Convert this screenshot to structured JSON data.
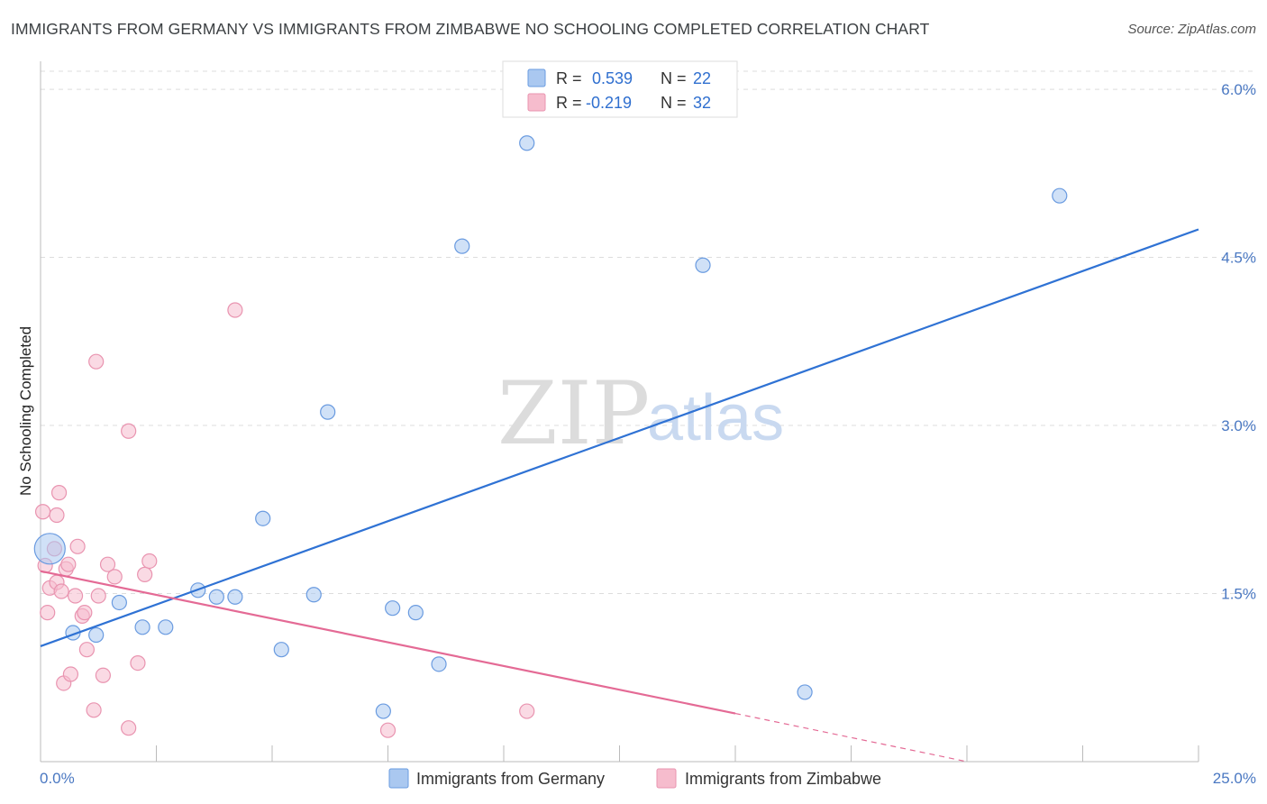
{
  "header": {
    "title": "IMMIGRANTS FROM GERMANY VS IMMIGRANTS FROM ZIMBABWE NO SCHOOLING COMPLETED CORRELATION CHART",
    "source": "Source: ZipAtlas.com"
  },
  "watermark": {
    "zip": "ZIP",
    "atlas": "atlas"
  },
  "colors": {
    "germany_fill": "#aac8f0",
    "germany_stroke": "#6a9be0",
    "germany_line": "#2f72d4",
    "zimbabwe_fill": "#f6bccd",
    "zimbabwe_stroke": "#e994b0",
    "zimbabwe_line": "#e46a95",
    "tick": "#4a78c2",
    "grid": "#dddddd"
  },
  "legend_top": {
    "rows": [
      {
        "series": "germany",
        "r_label": "R = ",
        "r_value": "0.539",
        "n_label": "N = ",
        "n_value": "22"
      },
      {
        "series": "zimbabwe",
        "r_label": "R = ",
        "r_value": "-0.219",
        "n_label": "N = ",
        "n_value": "32"
      }
    ]
  },
  "legend_bottom": {
    "germany": "Immigrants from Germany",
    "zimbabwe": "Immigrants from Zimbabwe"
  },
  "chart_data": {
    "type": "scatter",
    "title": "IMMIGRANTS FROM GERMANY VS IMMIGRANTS FROM ZIMBABWE NO SCHOOLING COMPLETED CORRELATION CHART",
    "xlabel": "",
    "ylabel": "No Schooling Completed",
    "xlim": [
      0,
      25
    ],
    "ylim": [
      0,
      6.25
    ],
    "x_tick_labels": [
      {
        "value": 0,
        "label": "0.0%"
      },
      {
        "value": 25,
        "label": "25.0%"
      }
    ],
    "x_minor_ticks": [
      0,
      2.5,
      5,
      7.5,
      10,
      12.5,
      15,
      17.5,
      20,
      22.5,
      25
    ],
    "y_ticks": [
      {
        "value": 1.5,
        "label": "1.5%"
      },
      {
        "value": 3.0,
        "label": "3.0%"
      },
      {
        "value": 4.5,
        "label": "4.5%"
      },
      {
        "value": 6.0,
        "label": "6.0%"
      }
    ],
    "series": [
      {
        "name": "Immigrants from Germany",
        "key": "germany",
        "r": 0.539,
        "n": 22,
        "points": [
          {
            "x": 0.2,
            "y": 1.9,
            "big": true
          },
          {
            "x": 0.7,
            "y": 1.15
          },
          {
            "x": 1.2,
            "y": 1.13
          },
          {
            "x": 1.7,
            "y": 1.42
          },
          {
            "x": 2.2,
            "y": 1.2
          },
          {
            "x": 2.7,
            "y": 1.2
          },
          {
            "x": 3.4,
            "y": 1.53
          },
          {
            "x": 3.8,
            "y": 1.47
          },
          {
            "x": 4.2,
            "y": 1.47
          },
          {
            "x": 4.8,
            "y": 2.17
          },
          {
            "x": 5.2,
            "y": 1.0
          },
          {
            "x": 5.9,
            "y": 1.49
          },
          {
            "x": 6.2,
            "y": 3.12
          },
          {
            "x": 7.4,
            "y": 0.45
          },
          {
            "x": 7.6,
            "y": 1.37
          },
          {
            "x": 8.1,
            "y": 1.33
          },
          {
            "x": 8.6,
            "y": 0.87
          },
          {
            "x": 9.1,
            "y": 4.6
          },
          {
            "x": 10.5,
            "y": 5.52
          },
          {
            "x": 14.3,
            "y": 4.43
          },
          {
            "x": 16.5,
            "y": 0.62
          },
          {
            "x": 22.0,
            "y": 5.05
          }
        ],
        "trend": {
          "x0": 0,
          "y0": 1.03,
          "x1": 25,
          "y1": 4.75
        }
      },
      {
        "name": "Immigrants from Zimbabwe",
        "key": "zimbabwe",
        "r": -0.219,
        "n": 32,
        "points": [
          {
            "x": 0.05,
            "y": 2.23
          },
          {
            "x": 0.1,
            "y": 1.75
          },
          {
            "x": 0.15,
            "y": 1.33
          },
          {
            "x": 0.2,
            "y": 1.55
          },
          {
            "x": 0.3,
            "y": 1.9
          },
          {
            "x": 0.35,
            "y": 1.6
          },
          {
            "x": 0.35,
            "y": 2.2
          },
          {
            "x": 0.4,
            "y": 2.4
          },
          {
            "x": 0.45,
            "y": 1.52
          },
          {
            "x": 0.5,
            "y": 0.7
          },
          {
            "x": 0.55,
            "y": 1.72
          },
          {
            "x": 0.6,
            "y": 1.76
          },
          {
            "x": 0.65,
            "y": 0.78
          },
          {
            "x": 0.75,
            "y": 1.48
          },
          {
            "x": 0.8,
            "y": 1.92
          },
          {
            "x": 0.9,
            "y": 1.3
          },
          {
            "x": 0.95,
            "y": 1.33
          },
          {
            "x": 1.0,
            "y": 1.0
          },
          {
            "x": 1.15,
            "y": 0.46
          },
          {
            "x": 1.2,
            "y": 3.57
          },
          {
            "x": 1.25,
            "y": 1.48
          },
          {
            "x": 1.35,
            "y": 0.77
          },
          {
            "x": 1.45,
            "y": 1.76
          },
          {
            "x": 1.6,
            "y": 1.65
          },
          {
            "x": 1.9,
            "y": 0.3
          },
          {
            "x": 1.9,
            "y": 2.95
          },
          {
            "x": 2.1,
            "y": 0.88
          },
          {
            "x": 2.25,
            "y": 1.67
          },
          {
            "x": 2.35,
            "y": 1.79
          },
          {
            "x": 4.2,
            "y": 4.03
          },
          {
            "x": 7.5,
            "y": 0.28
          },
          {
            "x": 10.5,
            "y": 0.45
          }
        ],
        "trend": {
          "x0": 0,
          "y0": 1.7,
          "x1": 15,
          "y1": 0.43
        },
        "trend_dashed": {
          "x0": 15,
          "y0": 0.43,
          "x1": 20,
          "y1": 0.0
        }
      }
    ]
  }
}
